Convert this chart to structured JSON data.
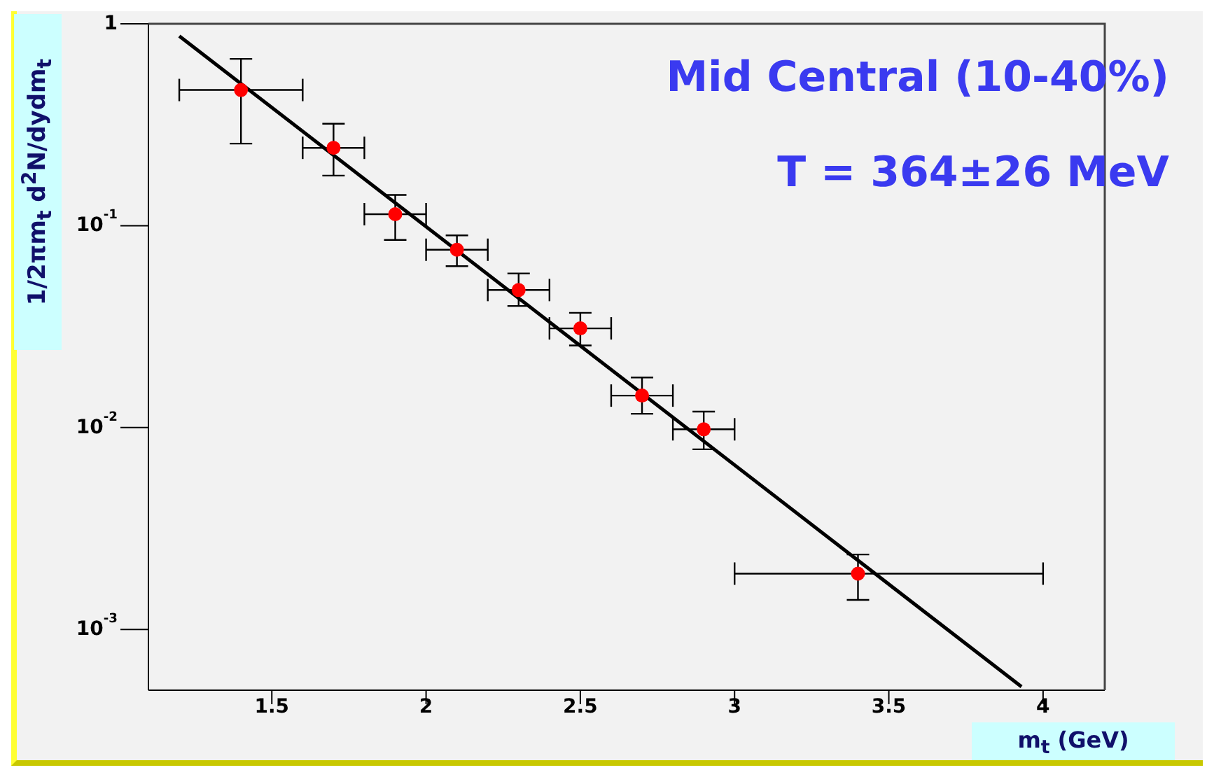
{
  "chart_data": {
    "type": "scatter",
    "xlabel": "m$_{t}$ (GeV)",
    "ylabel": "1/2πm$_{t}$ d$^{2}$N/dydm$_{t}$",
    "annotations": [
      "Mid Central (10-40%)",
      "T = 364±26 MeV"
    ],
    "log": "y",
    "legend": false,
    "marker": "circle",
    "xlim": [
      1.1,
      4.2
    ],
    "xticks": [
      1.5,
      2,
      2.5,
      3,
      3.5,
      4
    ],
    "ylim": [
      0.0005,
      1
    ],
    "yticks": [
      1,
      {
        "value": 0.1,
        "label": "10$^{-1}$"
      },
      {
        "value": 0.01,
        "label": "10$^{-2}$"
      },
      {
        "value": 0.001,
        "label": "10$^{-3}$"
      }
    ],
    "series": [
      {
        "color": "#ff0000",
        "x": [
          1.4,
          1.7,
          1.9,
          2.1,
          2.3,
          2.5,
          2.7,
          2.9,
          3.4
        ],
        "values": [
          0.47,
          0.243,
          0.114,
          0.076,
          0.048,
          0.031,
          0.0144,
          0.0098,
          0.00189
        ],
        "errors": [
          [
            0.255,
            0.67
          ],
          [
            0.177,
            0.32
          ],
          [
            0.085,
            0.142
          ],
          [
            0.063,
            0.0895
          ],
          [
            0.04,
            0.058
          ],
          [
            0.0255,
            0.037
          ],
          [
            0.0117,
            0.0177
          ],
          [
            0.0078,
            0.012
          ],
          [
            0.0014,
            0.00235
          ]
        ],
        "xerrors": [
          [
            1.2,
            1.6
          ],
          [
            1.6,
            1.8
          ],
          [
            1.8,
            2.0
          ],
          [
            2.0,
            2.2
          ],
          [
            2.2,
            2.4
          ],
          [
            2.4,
            2.6
          ],
          [
            2.6,
            2.8
          ],
          [
            2.8,
            3.0
          ],
          [
            3.0,
            4.0
          ]
        ]
      },
      {
        "type": "line",
        "color": "#000000",
        "line_style": "solid",
        "marker": "none",
        "x": [
          1.2,
          2.5,
          3.93
        ],
        "values": [
          0.87,
          0.0254,
          0.00052
        ]
      }
    ]
  }
}
